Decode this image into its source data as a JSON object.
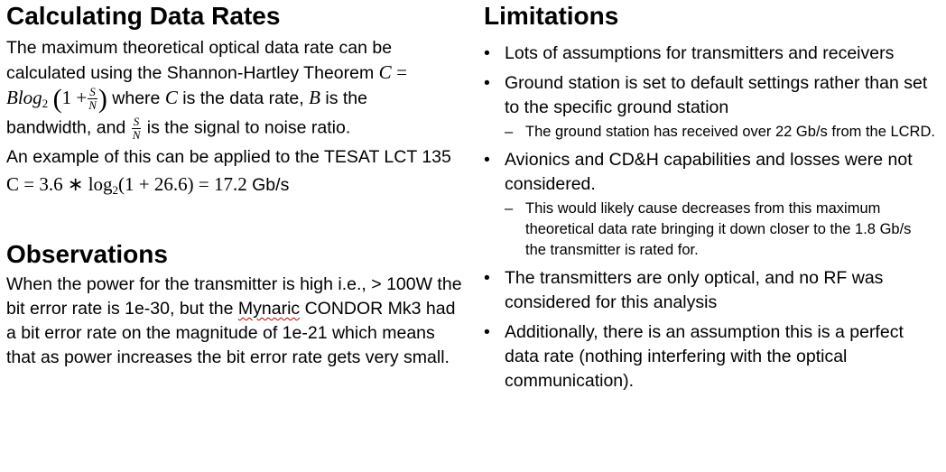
{
  "left": {
    "heading1": "Calculating Data Rates",
    "intro_text": "The maximum theoretical optical data rate can be calculated using the Shannon-Hartley Theorem",
    "formula": {
      "lhs": "C",
      "eq": "=",
      "b": "Blog",
      "b_sub": "2",
      "one_plus": "1 +",
      "num": "S",
      "den": "N"
    },
    "where_1": "where",
    "var_c": "C",
    "where_2": "is the data rate,",
    "var_b": "B",
    "where_3": "is the",
    "where_4": "bandwidth, and",
    "where_5": "is the signal to noise ratio.",
    "example_text": "An example of this can be applied to the TESAT LCT 135",
    "example_formula": {
      "lhs": "C = 3.6 ∗ log",
      "sub": "2",
      "rhs": "(1 + 26.6) = 17.2",
      "unit": "Gb/s"
    },
    "heading2": "Observations",
    "obs_1": "When the power for the transmitter is high i.e., > 100W the bit error rate is 1e-30, but the",
    "obs_word": "Mynaric",
    "obs_2": "CONDOR Mk3 had a bit error rate on the magnitude of 1e-21 which means that as power increases the bit error rate gets very small."
  },
  "right": {
    "heading": "Limitations",
    "bullets": [
      {
        "text": "Lots of assumptions for transmitters and receivers"
      },
      {
        "text": "Ground station is set to default settings rather than set to the specific ground station",
        "sub": "The ground station has received over 22 Gb/s from the LCRD."
      },
      {
        "text": "Avionics and CD&H capabilities and losses were not considered.",
        "sub": "This would likely cause decreases from this maximum theoretical data rate bringing it down closer to the 1.8 Gb/s the transmitter is rated for."
      },
      {
        "text": "The transmitters are only optical, and no RF was considered for this analysis"
      },
      {
        "text": "Additionally, there is an assumption this is a perfect data rate (nothing interfering with the optical communication)."
      }
    ]
  }
}
